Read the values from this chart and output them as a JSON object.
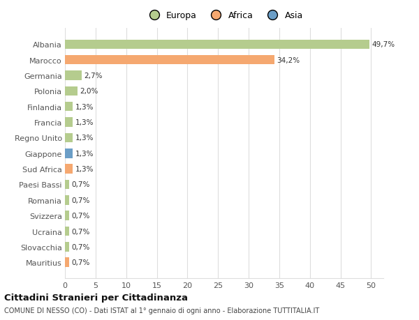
{
  "categories": [
    "Mauritius",
    "Slovacchia",
    "Ucraina",
    "Svizzera",
    "Romania",
    "Paesi Bassi",
    "Sud Africa",
    "Giappone",
    "Regno Unito",
    "Francia",
    "Finlandia",
    "Polonia",
    "Germania",
    "Marocco",
    "Albania"
  ],
  "values": [
    0.7,
    0.7,
    0.7,
    0.7,
    0.7,
    0.7,
    1.3,
    1.3,
    1.3,
    1.3,
    1.3,
    2.0,
    2.7,
    34.2,
    49.7
  ],
  "labels": [
    "0,7%",
    "0,7%",
    "0,7%",
    "0,7%",
    "0,7%",
    "0,7%",
    "1,3%",
    "1,3%",
    "1,3%",
    "1,3%",
    "1,3%",
    "2,0%",
    "2,7%",
    "34,2%",
    "49,7%"
  ],
  "colors": [
    "#f5a870",
    "#b5cc8e",
    "#b5cc8e",
    "#b5cc8e",
    "#b5cc8e",
    "#b5cc8e",
    "#f5a870",
    "#6b9ec7",
    "#b5cc8e",
    "#b5cc8e",
    "#b5cc8e",
    "#b5cc8e",
    "#b5cc8e",
    "#f5a870",
    "#b5cc8e"
  ],
  "legend_labels": [
    "Europa",
    "Africa",
    "Asia"
  ],
  "legend_colors": [
    "#b5cc8e",
    "#f5a870",
    "#6b9ec7"
  ],
  "xlim": [
    0,
    52
  ],
  "xticks": [
    0,
    5,
    10,
    15,
    20,
    25,
    30,
    35,
    40,
    45,
    50
  ],
  "title": "Cittadini Stranieri per Cittadinanza",
  "subtitle": "COMUNE DI NESSO (CO) - Dati ISTAT al 1° gennaio di ogni anno - Elaborazione TUTTITALIA.IT",
  "background_color": "#ffffff",
  "grid_color": "#dddddd",
  "bar_height": 0.6
}
